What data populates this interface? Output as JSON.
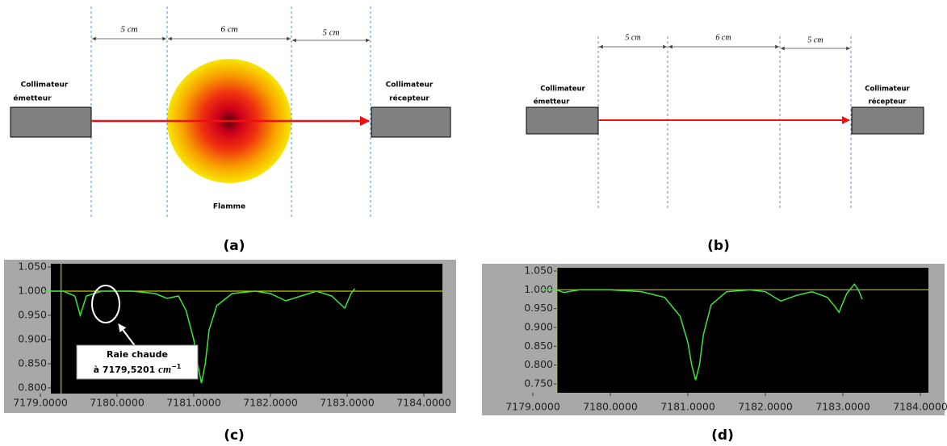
{
  "diagrams": [
    {
      "dimensions": [
        "5 cm",
        "6 cm",
        "5 cm"
      ],
      "emitter": [
        "Collimateur",
        "émetteur"
      ],
      "receiver": [
        "Collimateur",
        "récepteur"
      ],
      "flame": "Flamme",
      "label": "(a)"
    },
    {
      "dimensions": [
        "5 cm",
        "6 cm",
        "5 cm"
      ],
      "emitter": [
        "Collimateur",
        "émetteur"
      ],
      "receiver": [
        "Collimateur",
        "récepteur"
      ],
      "label": "(b)"
    }
  ],
  "annotation": {
    "line1": "Raie chaude",
    "line2": "à 7179,5201",
    "unit": "cm",
    "exponent": "−1"
  },
  "chart_data": [
    {
      "type": "line",
      "label": "(c)",
      "x": [
        7179.05,
        7179.3,
        7179.45,
        7179.52,
        7179.6,
        7179.8,
        7180.2,
        7180.5,
        7180.65,
        7180.8,
        7180.9,
        7181.0,
        7181.05,
        7181.1,
        7181.15,
        7181.2,
        7181.3,
        7181.5,
        7181.8,
        7182.0,
        7182.2,
        7182.4,
        7182.6,
        7182.8,
        7182.9,
        7182.97,
        7183.05,
        7183.1
      ],
      "series": [
        {
          "color": "#3ce63c",
          "values": [
            1.0,
            1.0,
            0.99,
            0.95,
            0.99,
            1.0,
            1.0,
            0.995,
            0.985,
            0.99,
            0.96,
            0.9,
            0.85,
            0.81,
            0.85,
            0.92,
            0.97,
            0.995,
            1.0,
            0.995,
            0.98,
            0.99,
            1.0,
            0.99,
            0.975,
            0.965,
            0.995,
            1.005
          ]
        }
      ],
      "xlim": [
        7179.0,
        7184.0
      ],
      "ylim": [
        0.8,
        1.05
      ],
      "xticks": [
        {
          "value": 7179,
          "label": "7179.0000"
        },
        {
          "value": 7180,
          "label": "7180.0000"
        },
        {
          "value": 7181,
          "label": "7181.0000"
        },
        {
          "value": 7182,
          "label": "7182.0000"
        },
        {
          "value": 7183,
          "label": "7183.0000"
        },
        {
          "value": 7184,
          "label": "7184.0000"
        }
      ],
      "yticks": [
        {
          "value": 0.8,
          "label": "0.800"
        },
        {
          "value": 0.85,
          "label": "0.850"
        },
        {
          "value": 0.9,
          "label": "0.900"
        },
        {
          "value": 0.95,
          "label": "0.950"
        },
        {
          "value": 1.0,
          "label": "1.000"
        },
        {
          "value": 1.05,
          "label": "1.050"
        }
      ],
      "cursor": {
        "x": 7179.27,
        "y": 1.0,
        "color": "#c8c800"
      }
    },
    {
      "type": "line",
      "label": "(d)",
      "x": [
        7179.1,
        7179.3,
        7179.4,
        7179.6,
        7180.0,
        7180.4,
        7180.7,
        7180.9,
        7181.0,
        7181.05,
        7181.1,
        7181.15,
        7181.2,
        7181.3,
        7181.5,
        7181.8,
        7182.0,
        7182.2,
        7182.4,
        7182.6,
        7182.8,
        7182.9,
        7182.95,
        7183.05,
        7183.15,
        7183.2,
        7183.25
      ],
      "series": [
        {
          "color": "#3ce63c",
          "values": [
            1.0,
            1.0,
            0.993,
            1.0,
            1.0,
            0.995,
            0.98,
            0.93,
            0.86,
            0.8,
            0.76,
            0.8,
            0.88,
            0.96,
            0.995,
            1.0,
            0.995,
            0.97,
            0.985,
            0.995,
            0.98,
            0.955,
            0.94,
            0.99,
            1.015,
            1.0,
            0.975
          ]
        }
      ],
      "xlim": [
        7179.0,
        7184.0
      ],
      "ylim": [
        0.75,
        1.05
      ],
      "xticks": [
        {
          "value": 7179,
          "label": "7179.0000"
        },
        {
          "value": 7180,
          "label": "7180.0000"
        },
        {
          "value": 7181,
          "label": "7181.0000"
        },
        {
          "value": 7182,
          "label": "7182.0000"
        },
        {
          "value": 7183,
          "label": "7183.0000"
        },
        {
          "value": 7184,
          "label": "7184.0000"
        }
      ],
      "yticks": [
        {
          "value": 0.75,
          "label": "0.750"
        },
        {
          "value": 0.8,
          "label": "0.800"
        },
        {
          "value": 0.85,
          "label": "0.850"
        },
        {
          "value": 0.9,
          "label": "0.900"
        },
        {
          "value": 0.95,
          "label": "0.950"
        },
        {
          "value": 1.0,
          "label": "1.000"
        },
        {
          "value": 1.05,
          "label": "1.050"
        }
      ],
      "cursor": {
        "x": 7179.31,
        "y": 1.0,
        "color": "#c8c800"
      }
    }
  ]
}
